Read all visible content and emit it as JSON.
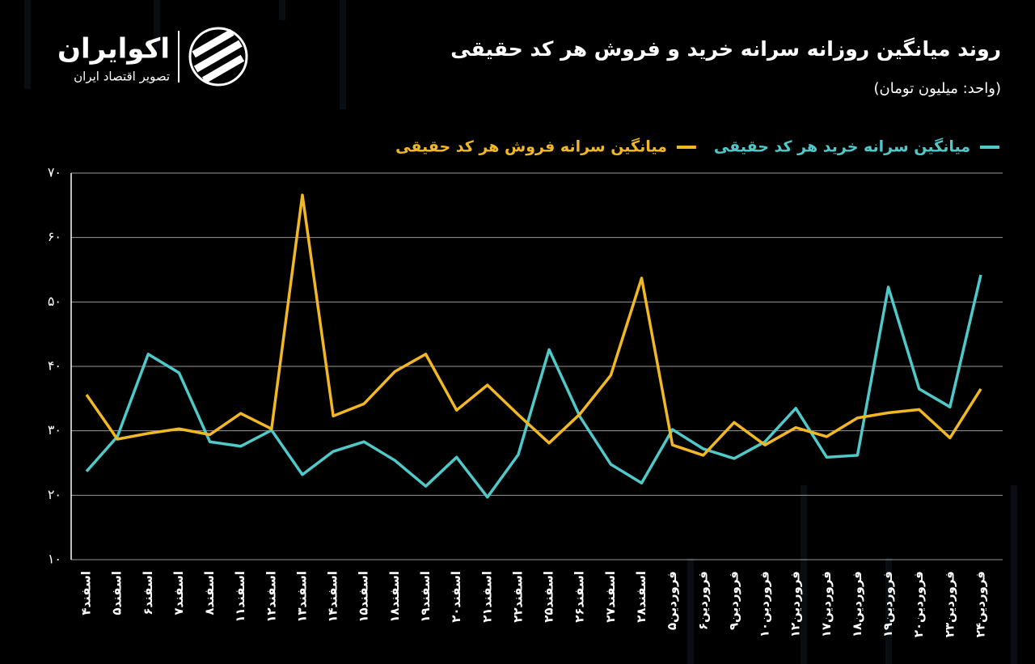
{
  "brand": {
    "name": "اکوایران",
    "tagline": "تصویر اقتصاد ایران"
  },
  "chart_data": {
    "type": "line",
    "title": "روند میانگین روزانه سرانه خرید و فروش هر کد حقیقی",
    "subtitle": "(واحد: میلیون تومان)",
    "categories": [
      "اسفند۴",
      "اسفند۵",
      "اسفند۶",
      "اسفند۷",
      "اسفند۸",
      "اسفند۱۱",
      "اسفند۱۲",
      "اسفند۱۳",
      "اسفند۱۴",
      "اسفند۱۵",
      "اسفند۱۸",
      "اسفند۱۹",
      "اسفند۲۰",
      "اسفند۲۱",
      "اسفند۲۲",
      "اسفند۲۵",
      "اسفند۲۶",
      "اسفند۲۷",
      "اسفند۲۸",
      "فروردین۵",
      "فروردین۶",
      "فروردین۹",
      "فروردین۱۰",
      "فروردین۱۲",
      "فروردین۱۷",
      "فروردین۱۸",
      "فروردین۱۹",
      "فروردین۲۰",
      "فروردین۲۳",
      "فروردین۲۴"
    ],
    "series": [
      {
        "name": "میانگین سرانه خرید هر کد حقیقی",
        "color": "#4fc9c9",
        "values": [
          23.7,
          29.1,
          41.9,
          39.0,
          28.3,
          27.6,
          30.1,
          23.2,
          26.8,
          28.3,
          25.4,
          21.4,
          25.9,
          19.7,
          26.3,
          42.6,
          32.2,
          24.8,
          21.9,
          30.2,
          27.2,
          25.7,
          28.3,
          33.5,
          25.9,
          26.2,
          52.3,
          36.5,
          33.7,
          54.2
        ]
      },
      {
        "name": "میانگین سرانه فروش هر کد حقیقی",
        "color": "#f2b824",
        "values": [
          35.6,
          28.7,
          29.6,
          30.3,
          29.4,
          32.7,
          30.3,
          66.6,
          32.3,
          34.2,
          39.2,
          41.9,
          33.2,
          37.1,
          32.5,
          28.1,
          32.6,
          38.6,
          53.7,
          27.8,
          26.2,
          31.3,
          27.8,
          30.5,
          29.1,
          32.0,
          32.8,
          33.3,
          28.9,
          36.5
        ]
      }
    ],
    "ylim": [
      10,
      70
    ],
    "yticks": [
      {
        "value": 10,
        "label": "۱۰"
      },
      {
        "value": 20,
        "label": "۲۰"
      },
      {
        "value": 30,
        "label": "۳۰"
      },
      {
        "value": 40,
        "label": "۴۰"
      },
      {
        "value": 50,
        "label": "۵۰"
      },
      {
        "value": 60,
        "label": "۶۰"
      },
      {
        "value": 70,
        "label": "۷۰"
      }
    ],
    "grid": true,
    "legend": "top"
  }
}
